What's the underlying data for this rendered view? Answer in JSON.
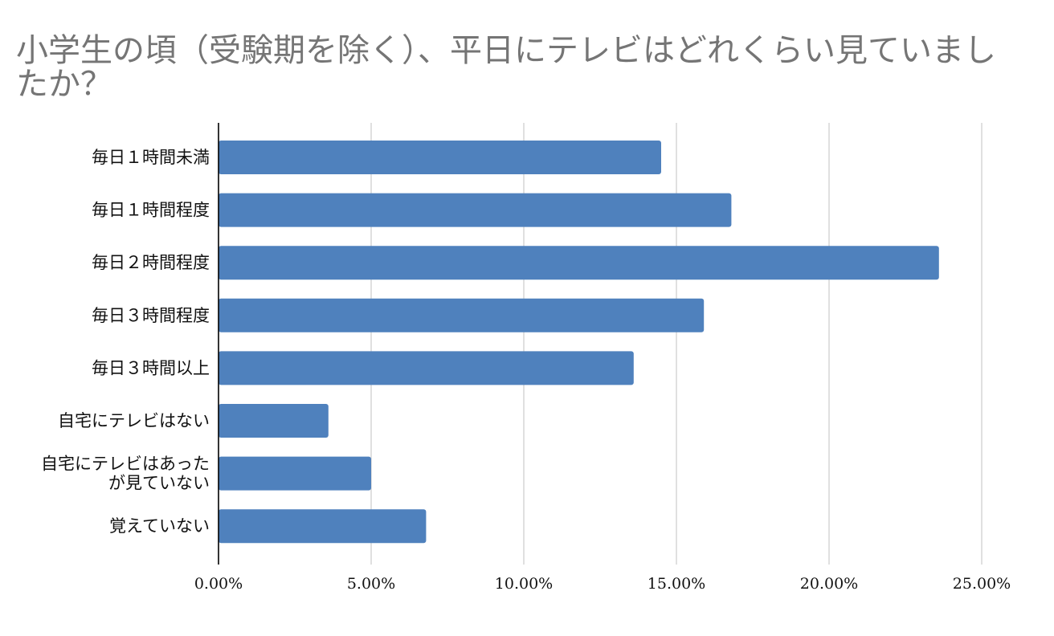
{
  "chart_data": {
    "type": "bar",
    "orientation": "horizontal",
    "title": "小学生の頃（受験期を除く）、平日にテレビはどれくらい見ていましたか？",
    "categories": [
      "毎日１時間未満",
      "毎日１時間程度",
      "毎日２時間程度",
      "毎日３時間程度",
      "毎日３時間以上",
      "自宅にテレビはない",
      "自宅にテレビはあったが見ていない",
      "覚えていない"
    ],
    "category_label_lines": [
      [
        "毎日１時間未満"
      ],
      [
        "毎日１時間程度"
      ],
      [
        "毎日２時間程度"
      ],
      [
        "毎日３時間程度"
      ],
      [
        "毎日３時間以上"
      ],
      [
        "自宅にテレビはない"
      ],
      [
        "自宅にテレビはあった",
        "が見ていない"
      ],
      [
        "覚えていない"
      ]
    ],
    "values": [
      14.5,
      16.8,
      23.6,
      15.9,
      13.6,
      3.6,
      5.0,
      6.8
    ],
    "value_unit": "%",
    "xlim": [
      0,
      25
    ],
    "x_ticks": [
      0,
      5,
      10,
      15,
      20,
      25
    ],
    "x_tick_labels": [
      "0.00%",
      "5.00%",
      "10.00%",
      "15.00%",
      "20.00%",
      "25.00%"
    ],
    "grid": true,
    "legend": "none",
    "xlabel": "",
    "ylabel": "",
    "colors": {
      "bar": "#4f81bd",
      "grid": "#cccccc",
      "axis": "#000000",
      "title": "#757575"
    }
  }
}
